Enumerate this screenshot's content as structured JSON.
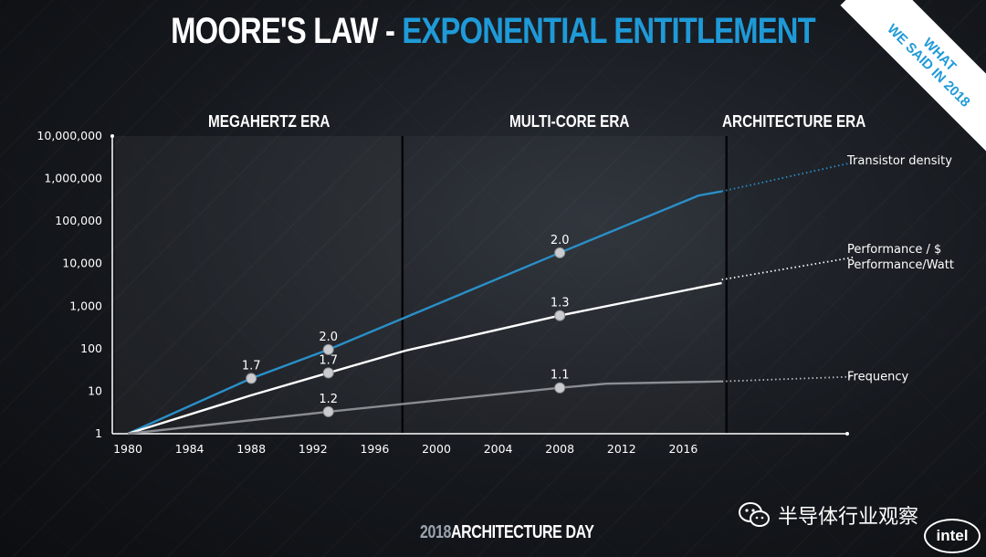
{
  "slide": {
    "title_white": "MOORE'S LAW -",
    "title_blue": "EXPONENTIAL ENTITLEMENT",
    "ribbon_line1": "WHAT",
    "ribbon_line2": "WE SAID IN 2018",
    "footer_year": "2018",
    "footer_text": "ARCHITECTURE DAY",
    "watermark": "半导体行业观察",
    "logo": "intel"
  },
  "colors": {
    "transistor": "#2a8fc8",
    "performance": "#ffffff",
    "frequency": "#8a8d92",
    "accent": "#1f9ad8"
  },
  "chart_data": {
    "type": "line",
    "y_scale": "log",
    "ylim": [
      1,
      10000000
    ],
    "xlim": [
      1980,
      2027
    ],
    "y_ticks": [
      {
        "value": 1,
        "label": "1"
      },
      {
        "value": 10,
        "label": "10"
      },
      {
        "value": 100,
        "label": "100"
      },
      {
        "value": 1000,
        "label": "1,000"
      },
      {
        "value": 10000,
        "label": "10,000"
      },
      {
        "value": 100000,
        "label": "100,000"
      },
      {
        "value": 1000000,
        "label": "1,000,000"
      },
      {
        "value": 10000000,
        "label": "10,000,000"
      }
    ],
    "x_ticks": [
      1980,
      1984,
      1988,
      1992,
      1996,
      2000,
      2004,
      2008,
      2012,
      2016
    ],
    "eras": [
      {
        "name": "MEGAHERTZ ERA",
        "start": 1980,
        "end": 1997.8
      },
      {
        "name": "MULTI-CORE ERA",
        "start": 1997.8,
        "end": 2018.8
      },
      {
        "name": "ARCHITECTURE ERA",
        "start": 2018.8,
        "end": 2027
      }
    ],
    "series": [
      {
        "name": "Transistor density",
        "color_key": "transistor",
        "points": [
          [
            1980,
            1
          ],
          [
            1988,
            20
          ],
          [
            1993,
            95
          ],
          [
            2008,
            18000
          ],
          [
            2017,
            400000
          ],
          [
            2018.5,
            500000
          ]
        ],
        "projection": [
          [
            2018.5,
            500000
          ],
          [
            2027,
            2400000
          ]
        ],
        "markers": [
          {
            "x": 1988,
            "y": 20,
            "label": "1.7"
          },
          {
            "x": 1993,
            "y": 95,
            "label": "2.0"
          },
          {
            "x": 2008,
            "y": 18000,
            "label": "2.0"
          }
        ]
      },
      {
        "name": "Performance / $",
        "name2": "Performance/Watt",
        "color_key": "performance",
        "points": [
          [
            1980,
            1
          ],
          [
            1988,
            8
          ],
          [
            1993,
            27
          ],
          [
            1998,
            90
          ],
          [
            2008,
            600
          ],
          [
            2018.5,
            3500
          ]
        ],
        "projection": [
          [
            2018.5,
            4200
          ],
          [
            2027,
            14000
          ]
        ],
        "markers": [
          {
            "x": 1993,
            "y": 27,
            "label": "1.7"
          },
          {
            "x": 2008,
            "y": 600,
            "label": "1.3"
          }
        ]
      },
      {
        "name": "Frequency",
        "color_key": "frequency",
        "points": [
          [
            1980,
            1
          ],
          [
            1993,
            3.3
          ],
          [
            2008,
            12
          ],
          [
            2011,
            15
          ],
          [
            2018.5,
            17
          ]
        ],
        "projection": [
          [
            2018.5,
            17
          ],
          [
            2027,
            22
          ]
        ],
        "markers": [
          {
            "x": 1993,
            "y": 3.3,
            "label": "1.2"
          },
          {
            "x": 2008,
            "y": 12,
            "label": "1.1"
          }
        ]
      }
    ]
  }
}
